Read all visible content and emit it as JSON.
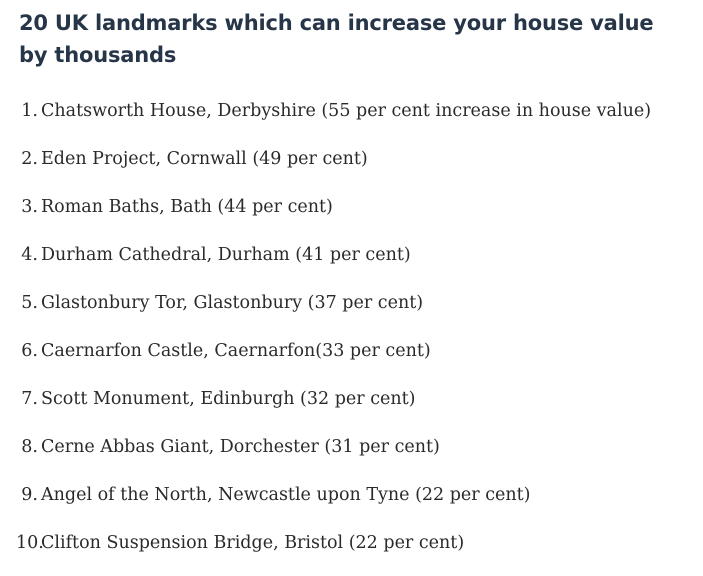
{
  "article": {
    "headline": "20 UK landmarks which can increase your house value by thousands"
  },
  "landmarks": [
    {
      "number": "1.",
      "text": "Chatsworth House, Derbyshire (55 per cent increase in house value)"
    },
    {
      "number": "2.",
      "text": "Eden Project, Cornwall (49 per cent)"
    },
    {
      "number": "3.",
      "text": "Roman Baths, Bath (44 per cent)"
    },
    {
      "number": "4.",
      "text": "Durham Cathedral, Durham (41 per cent)"
    },
    {
      "number": "5.",
      "text": "Glastonbury Tor, Glastonbury (37 per cent)"
    },
    {
      "number": "6.",
      "text": "Caernarfon Castle, Caernarfon(33 per cent)"
    },
    {
      "number": "7.",
      "text": "Scott Monument, Edinburgh (32 per cent)"
    },
    {
      "number": "8.",
      "text": "Cerne Abbas Giant, Dorchester (31 per cent)"
    },
    {
      "number": "9.",
      "text": "Angel of the North, Newcastle upon Tyne (22 per cent)"
    },
    {
      "number": "10.",
      "text": "Clifton Suspension Bridge, Bristol (22 per cent)"
    }
  ]
}
